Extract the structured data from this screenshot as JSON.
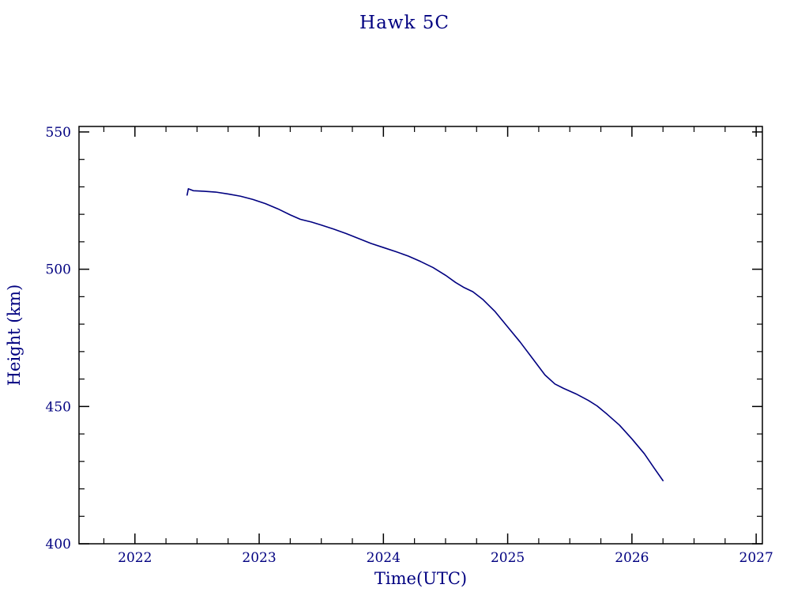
{
  "chart_data": {
    "type": "line",
    "title": "Hawk 5C",
    "xlabel": "Time(UTC)",
    "ylabel": "Height (km)",
    "xlim": [
      2021.55,
      2027.05
    ],
    "ylim": [
      400,
      552
    ],
    "x_ticks": [
      2022,
      2023,
      2024,
      2025,
      2026,
      2027
    ],
    "y_ticks": [
      400,
      450,
      500,
      550
    ],
    "x_minor_step": 0.25,
    "y_minor_step": 10,
    "grid": false,
    "legend_position": "none",
    "line_color": "#000080",
    "frame_color": "#000000",
    "text_color": "#000080",
    "series": [
      {
        "name": "Hawk 5C height",
        "points": [
          [
            2022.42,
            527.0
          ],
          [
            2022.43,
            529.3
          ],
          [
            2022.47,
            528.6
          ],
          [
            2022.55,
            528.4
          ],
          [
            2022.65,
            528.1
          ],
          [
            2022.75,
            527.4
          ],
          [
            2022.85,
            526.6
          ],
          [
            2022.95,
            525.4
          ],
          [
            2023.05,
            523.9
          ],
          [
            2023.15,
            522.0
          ],
          [
            2023.25,
            519.8
          ],
          [
            2023.33,
            518.2
          ],
          [
            2023.42,
            517.2
          ],
          [
            2023.5,
            516.1
          ],
          [
            2023.6,
            514.6
          ],
          [
            2023.7,
            513.0
          ],
          [
            2023.8,
            511.2
          ],
          [
            2023.9,
            509.4
          ],
          [
            2024.0,
            507.9
          ],
          [
            2024.1,
            506.4
          ],
          [
            2024.2,
            504.8
          ],
          [
            2024.3,
            502.8
          ],
          [
            2024.4,
            500.6
          ],
          [
            2024.5,
            497.8
          ],
          [
            2024.58,
            495.2
          ],
          [
            2024.65,
            493.3
          ],
          [
            2024.72,
            491.8
          ],
          [
            2024.8,
            489.0
          ],
          [
            2024.9,
            484.5
          ],
          [
            2025.0,
            479.0
          ],
          [
            2025.1,
            473.5
          ],
          [
            2025.2,
            467.5
          ],
          [
            2025.3,
            461.5
          ],
          [
            2025.38,
            458.2
          ],
          [
            2025.45,
            456.6
          ],
          [
            2025.55,
            454.6
          ],
          [
            2025.65,
            452.2
          ],
          [
            2025.72,
            450.2
          ],
          [
            2025.8,
            447.2
          ],
          [
            2025.9,
            443.2
          ],
          [
            2026.0,
            438.2
          ],
          [
            2026.1,
            432.8
          ],
          [
            2026.18,
            427.5
          ],
          [
            2026.25,
            423.0
          ]
        ]
      }
    ]
  }
}
